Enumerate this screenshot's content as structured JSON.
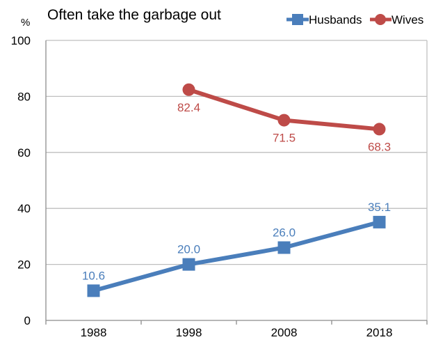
{
  "chart_data": {
    "type": "line",
    "title": "Often take the garbage out",
    "y_unit": "%",
    "x": [
      "1988",
      "1998",
      "2008",
      "2018"
    ],
    "ylim": [
      0,
      100
    ],
    "yticks": [
      0,
      20,
      40,
      60,
      80,
      100
    ],
    "grid": true,
    "legend_position": "top-right",
    "series": [
      {
        "name": "Husbands",
        "color": "#4A7EBB",
        "marker": "square",
        "values": [
          10.6,
          20.0,
          26.0,
          35.1
        ],
        "labels": [
          "10.6",
          "20.0",
          "26.0",
          "35.1"
        ]
      },
      {
        "name": "Wives",
        "color": "#BE4B48",
        "marker": "circle",
        "values": [
          null,
          82.4,
          71.5,
          68.3
        ],
        "labels": [
          "",
          "82.4",
          "71.5",
          "68.3"
        ]
      }
    ]
  }
}
